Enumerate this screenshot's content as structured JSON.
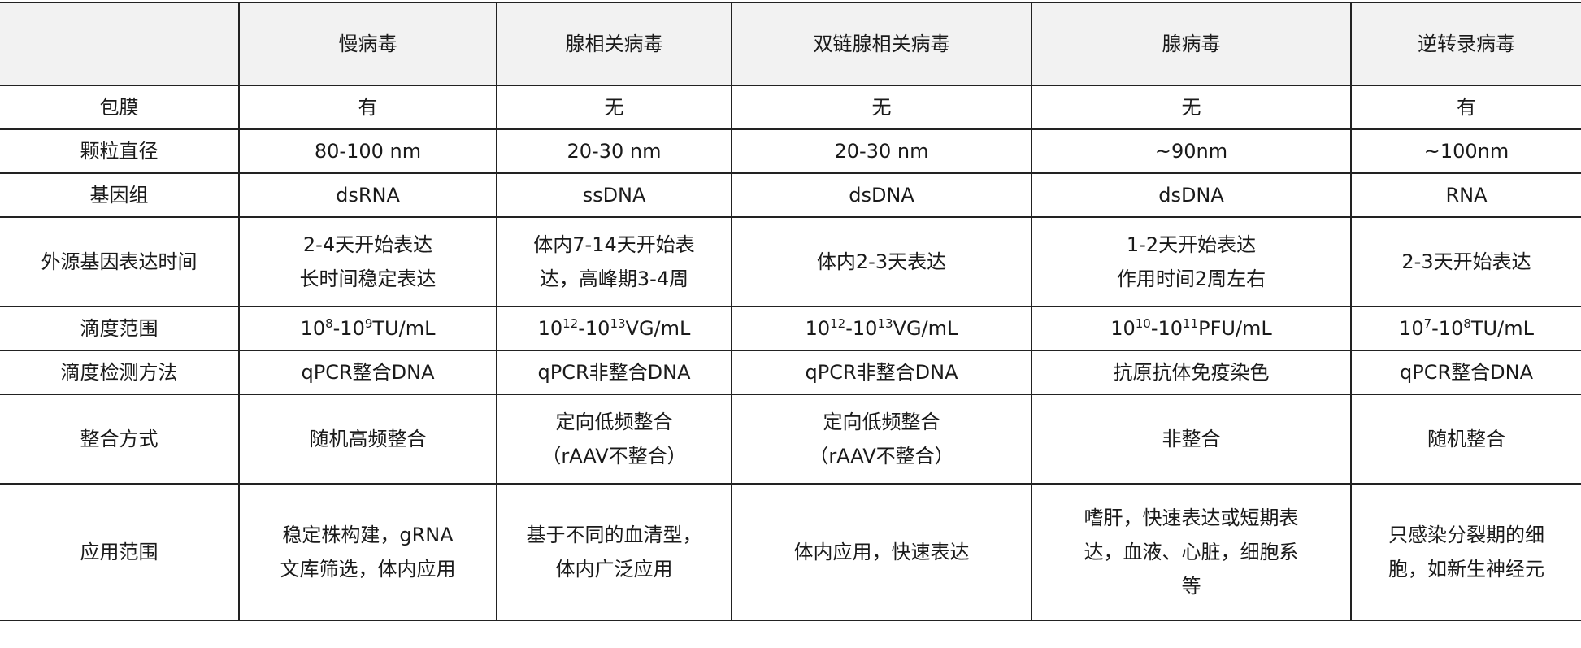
{
  "columns": [
    "",
    "慢病毒",
    "腺相关病毒",
    "双链腺相关病毒",
    "腺病毒",
    "逆转录病毒"
  ],
  "rows": [
    {
      "label": "包膜",
      "cells": [
        "有",
        "无",
        "无",
        "无",
        "有"
      ]
    },
    {
      "label": "颗粒直径",
      "cells": [
        "80-100 nm",
        "20-30 nm",
        "20-30 nm",
        "~90nm",
        "~100nm"
      ]
    },
    {
      "label": "基因组",
      "cells": [
        "dsRNA",
        "ssDNA",
        "dsDNA",
        "dsDNA",
        "RNA"
      ]
    },
    {
      "label": "外源基因表达时间",
      "cells": [
        [
          "2-4天开始表达",
          "长时间稳定表达"
        ],
        [
          "体内7-14天开始表",
          "达，高峰期3-4周"
        ],
        [
          "体内2-3天表达"
        ],
        [
          "1-2天开始表达",
          "作用时间2周左右"
        ],
        [
          "2-3天开始表达"
        ]
      ]
    },
    {
      "label": "滴度范围",
      "titer": [
        {
          "base1": "10",
          "exp1": "8",
          "base2": "-10",
          "exp2": "9",
          "unit": "TU/mL"
        },
        {
          "base1": "10",
          "exp1": "12",
          "base2": "-10",
          "exp2": "13",
          "unit": "VG/mL"
        },
        {
          "base1": "10",
          "exp1": "12",
          "base2": "-10",
          "exp2": "13",
          "unit": "VG/mL"
        },
        {
          "base1": "10",
          "exp1": "10",
          "base2": "-10",
          "exp2": "11",
          "unit": "PFU/mL"
        },
        {
          "base1": "10",
          "exp1": "7",
          "base2": "-10",
          "exp2": "8",
          "unit": "TU/mL"
        }
      ]
    },
    {
      "label": "滴度检测方法",
      "cells": [
        "qPCR整合DNA",
        "qPCR非整合DNA",
        "qPCR非整合DNA",
        "抗原抗体免疫染色",
        "qPCR整合DNA"
      ]
    },
    {
      "label": "整合方式",
      "cells": [
        [
          "随机高频整合"
        ],
        [
          "定向低频整合",
          "（rAAV不整合）"
        ],
        [
          "定向低频整合",
          "（rAAV不整合）"
        ],
        [
          "非整合"
        ],
        [
          "随机整合"
        ]
      ]
    },
    {
      "label": "应用范围",
      "cells": [
        [
          "稳定株构建，gRNA",
          "文库筛选，体内应用"
        ],
        [
          "基于不同的血清型，",
          "体内广泛应用"
        ],
        [
          "体内应用，快速表达"
        ],
        [
          "嗜肝，快速表达或短期表",
          "达，血液、心脏，细胞系",
          "等"
        ],
        [
          "只感染分裂期的细",
          "胞，如新生神经元"
        ]
      ]
    }
  ]
}
